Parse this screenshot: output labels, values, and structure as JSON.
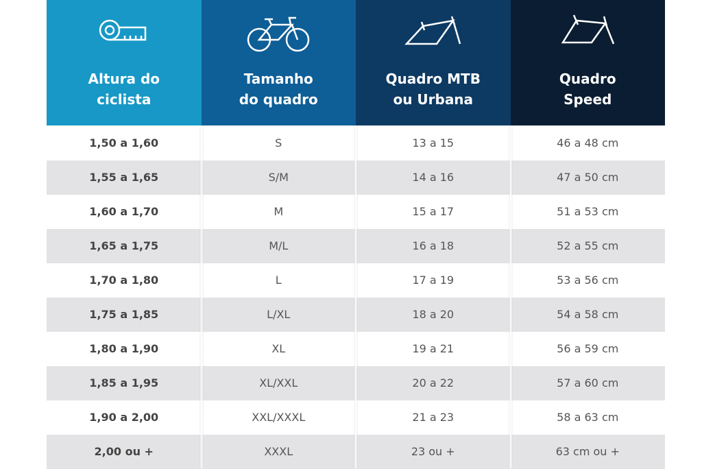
{
  "table": {
    "headers": [
      [
        "Altura do",
        "ciclista"
      ],
      [
        "Tamanho",
        "do quadro"
      ],
      [
        "Quadro MTB",
        "ou Urbana"
      ],
      [
        "Quadro",
        "Speed"
      ]
    ],
    "rows": [
      [
        "1,50 a 1,60",
        "S",
        "13 a 15",
        "46 a 48 cm"
      ],
      [
        "1,55 a 1,65",
        "S/M",
        "14 a 16",
        "47 a 50 cm"
      ],
      [
        "1,60 a 1,70",
        "M",
        "15 a 17",
        "51 a 53 cm"
      ],
      [
        "1,65 a 1,75",
        "M/L",
        "16 a 18",
        "52 a 55 cm"
      ],
      [
        "1,70 a 1,80",
        "L",
        "17 a 19",
        "53 a 56 cm"
      ],
      [
        "1,75 a 1,85",
        "L/XL",
        "18 a 20",
        "54 a 58 cm"
      ],
      [
        "1,80 a 1,90",
        "XL",
        "19 a 21",
        "56 a 59 cm"
      ],
      [
        "1,85 a 1,95",
        "XL/XXL",
        "20 a 22",
        "57 a 60 cm"
      ],
      [
        "1,90 a 2,00",
        "XXL/XXXL",
        "21 a 23",
        "58 a 63 cm"
      ],
      [
        "2,00 ou +",
        "XXXL",
        "23 ou +",
        "63 cm ou +"
      ]
    ]
  }
}
